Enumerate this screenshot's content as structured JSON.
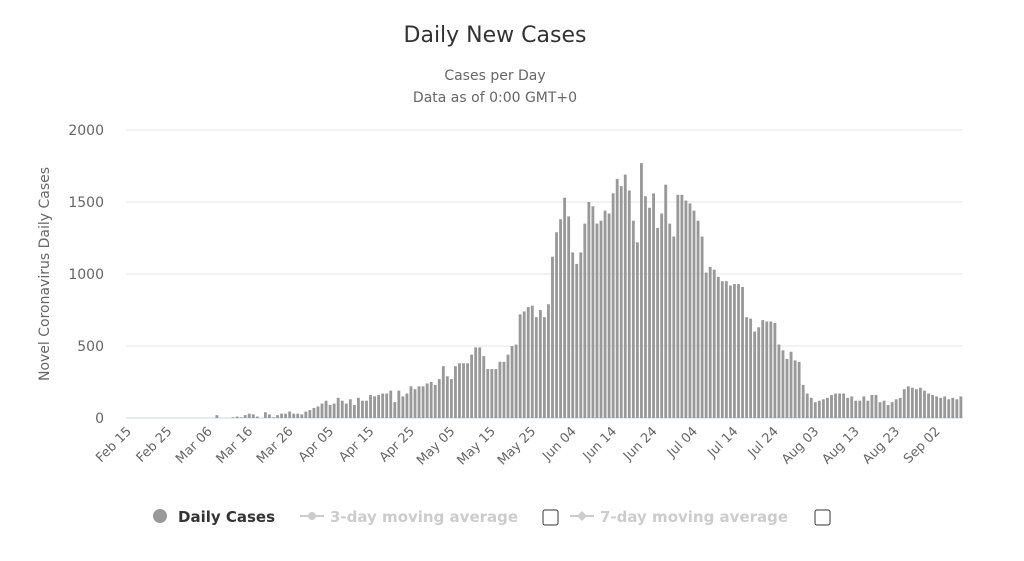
{
  "chart_data": {
    "type": "bar",
    "title": "Daily New Cases",
    "subtitle": [
      "Cases per Day",
      "Data as of 0:00 GMT+0"
    ],
    "ylabel": "Novel Coronavirus Daily Cases",
    "xlabel": "",
    "ylim": [
      0,
      2000
    ],
    "yticks": [
      "0",
      "500",
      "1000",
      "1500",
      "2000"
    ],
    "ytick_values": [
      0,
      500,
      1000,
      1500,
      2000
    ],
    "grid": true,
    "bar_color": "#999999",
    "start_date": "Feb 15",
    "xticks": [
      "Feb 15",
      "Feb 25",
      "Mar 06",
      "Mar 16",
      "Mar 26",
      "Apr 05",
      "Apr 15",
      "Apr 25",
      "May 05",
      "May 15",
      "May 25",
      "Jun 04",
      "Jun 14",
      "Jun 24",
      "Jul 04",
      "Jul 14",
      "Jul 24",
      "Aug 03",
      "Aug 13",
      "Aug 23",
      "Sep 02"
    ],
    "series": [
      {
        "name": "Daily Cases",
        "values": [
          0,
          0,
          0,
          0,
          0,
          0,
          0,
          0,
          0,
          0,
          0,
          0,
          0,
          0,
          0,
          0,
          0,
          0,
          0,
          0,
          0,
          0,
          20,
          0,
          0,
          0,
          5,
          10,
          5,
          20,
          30,
          25,
          10,
          0,
          40,
          25,
          5,
          20,
          30,
          30,
          45,
          30,
          30,
          25,
          45,
          55,
          70,
          80,
          100,
          120,
          90,
          100,
          140,
          120,
          100,
          130,
          90,
          140,
          120,
          120,
          160,
          150,
          160,
          170,
          170,
          190,
          110,
          190,
          150,
          170,
          220,
          200,
          220,
          220,
          240,
          250,
          230,
          270,
          360,
          290,
          270,
          360,
          380,
          380,
          380,
          440,
          490,
          490,
          430,
          340,
          340,
          340,
          390,
          390,
          440,
          500,
          510,
          720,
          740,
          770,
          780,
          700,
          750,
          700,
          790,
          1120,
          1290,
          1380,
          1530,
          1400,
          1150,
          1070,
          1150,
          1350,
          1500,
          1470,
          1350,
          1370,
          1440,
          1420,
          1560,
          1660,
          1610,
          1690,
          1580,
          1370,
          1220,
          1770,
          1540,
          1460,
          1560,
          1320,
          1420,
          1620,
          1350,
          1260,
          1550,
          1550,
          1510,
          1490,
          1440,
          1370,
          1260,
          1010,
          1050,
          1030,
          980,
          950,
          950,
          920,
          930,
          930,
          910,
          700,
          690,
          600,
          630,
          680,
          670,
          670,
          660,
          510,
          470,
          410,
          460,
          400,
          390,
          230,
          170,
          140,
          110,
          120,
          130,
          140,
          160,
          170,
          170,
          170,
          140,
          150,
          120,
          120,
          150,
          120,
          160,
          160,
          110,
          120,
          90,
          110,
          130,
          140,
          200,
          220,
          210,
          200,
          210,
          190,
          170,
          160,
          150,
          140,
          150,
          130,
          140,
          130,
          150
        ]
      }
    ],
    "legend": {
      "placement": "bottom",
      "items": [
        {
          "label": "Daily Cases",
          "active": true
        },
        {
          "label": "3-day moving average",
          "active": false
        },
        {
          "label": "7-day moving average",
          "active": false
        }
      ]
    }
  }
}
